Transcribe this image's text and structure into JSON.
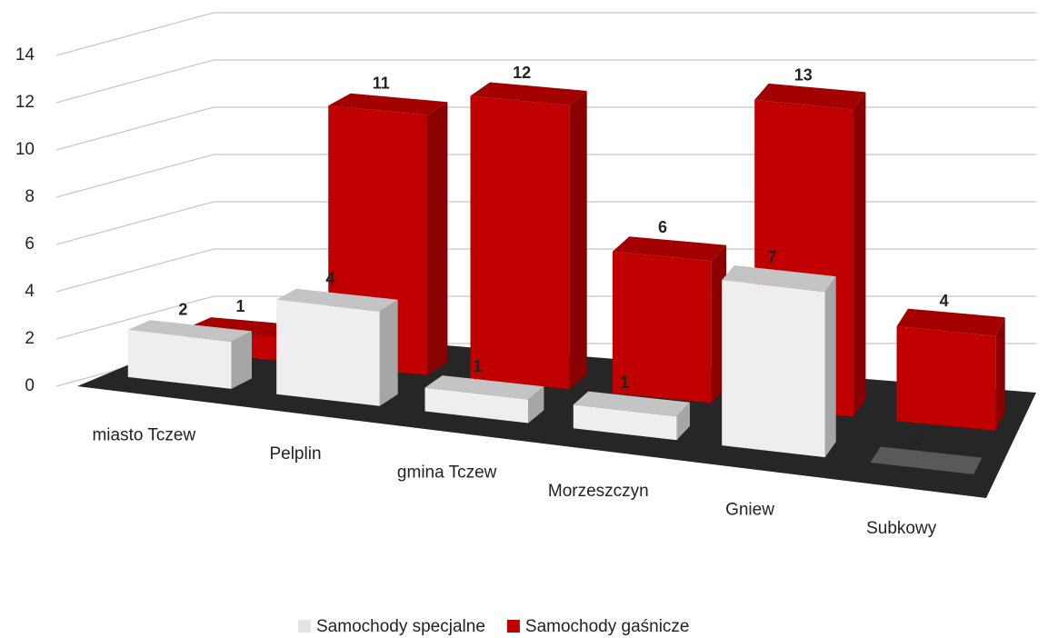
{
  "chart_data": {
    "type": "bar3d",
    "categories": [
      "miasto Tczew",
      "Pelplin",
      "gmina Tczew",
      "Morzeszczyn",
      "Gniew",
      "Subkowy"
    ],
    "series": [
      {
        "name": "Samochody specjalne",
        "color": "#eeeeee",
        "values": [
          2,
          4,
          1,
          1,
          7,
          0
        ]
      },
      {
        "name": "Samochody gaśnicze",
        "color": "#c00000",
        "values": [
          1,
          11,
          12,
          6,
          13,
          4
        ]
      }
    ],
    "ylim": [
      0,
      14
    ],
    "yticks": [
      0,
      2,
      4,
      6,
      8,
      10,
      12,
      14
    ],
    "grid": true,
    "legend": "bottom"
  }
}
